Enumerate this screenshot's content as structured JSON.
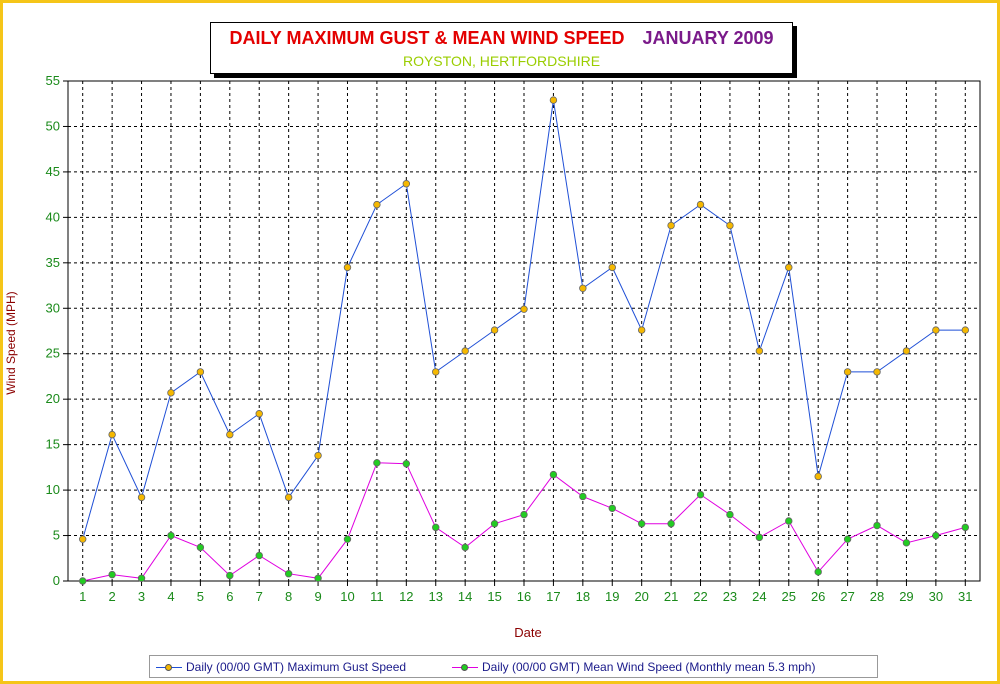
{
  "chart_data": {
    "type": "line",
    "title": "DAILY MAXIMUM GUST & MEAN WIND SPEED",
    "title_date": "JANUARY 2009",
    "subtitle": "ROYSTON, HERTFORDSHIRE",
    "xlabel": "Date",
    "ylabel": "Wind Speed (MPH)",
    "ylim": [
      0,
      55
    ],
    "ytick_step": 5,
    "x": [
      1,
      2,
      3,
      4,
      5,
      6,
      7,
      8,
      9,
      10,
      11,
      12,
      13,
      14,
      15,
      16,
      17,
      18,
      19,
      20,
      21,
      22,
      23,
      24,
      25,
      26,
      27,
      28,
      29,
      30,
      31
    ],
    "grid": true,
    "legend_position": "bottom",
    "series": [
      {
        "name": "Daily (00/00 GMT) Maximum Gust Speed",
        "line_color": "#1f4fd6",
        "marker_color": "#f5b800",
        "values": [
          4.6,
          16.1,
          9.2,
          20.7,
          23.0,
          16.1,
          18.4,
          9.2,
          13.8,
          34.5,
          41.4,
          43.7,
          23.0,
          25.3,
          27.6,
          29.9,
          52.9,
          32.2,
          34.5,
          27.6,
          39.1,
          41.4,
          39.1,
          25.3,
          34.5,
          11.5,
          23.0,
          23.0,
          25.3,
          27.6,
          27.6
        ]
      },
      {
        "name": "Daily (00/00 GMT) Mean Wind Speed (Monthly mean 5.3 mph)",
        "line_color": "#e000e0",
        "marker_color": "#22cc22",
        "values": [
          0.0,
          0.7,
          0.3,
          5.0,
          3.7,
          0.6,
          2.8,
          0.8,
          0.3,
          4.6,
          13.0,
          12.9,
          5.9,
          3.7,
          6.3,
          7.3,
          11.7,
          9.3,
          8.0,
          6.3,
          6.3,
          9.5,
          7.3,
          4.8,
          6.6,
          1.0,
          4.6,
          6.1,
          4.2,
          5.0,
          5.9
        ]
      }
    ]
  },
  "colors": {
    "frame_border": "#f5c518",
    "tick_label": "#1a8a1a",
    "grid": "#000000"
  }
}
